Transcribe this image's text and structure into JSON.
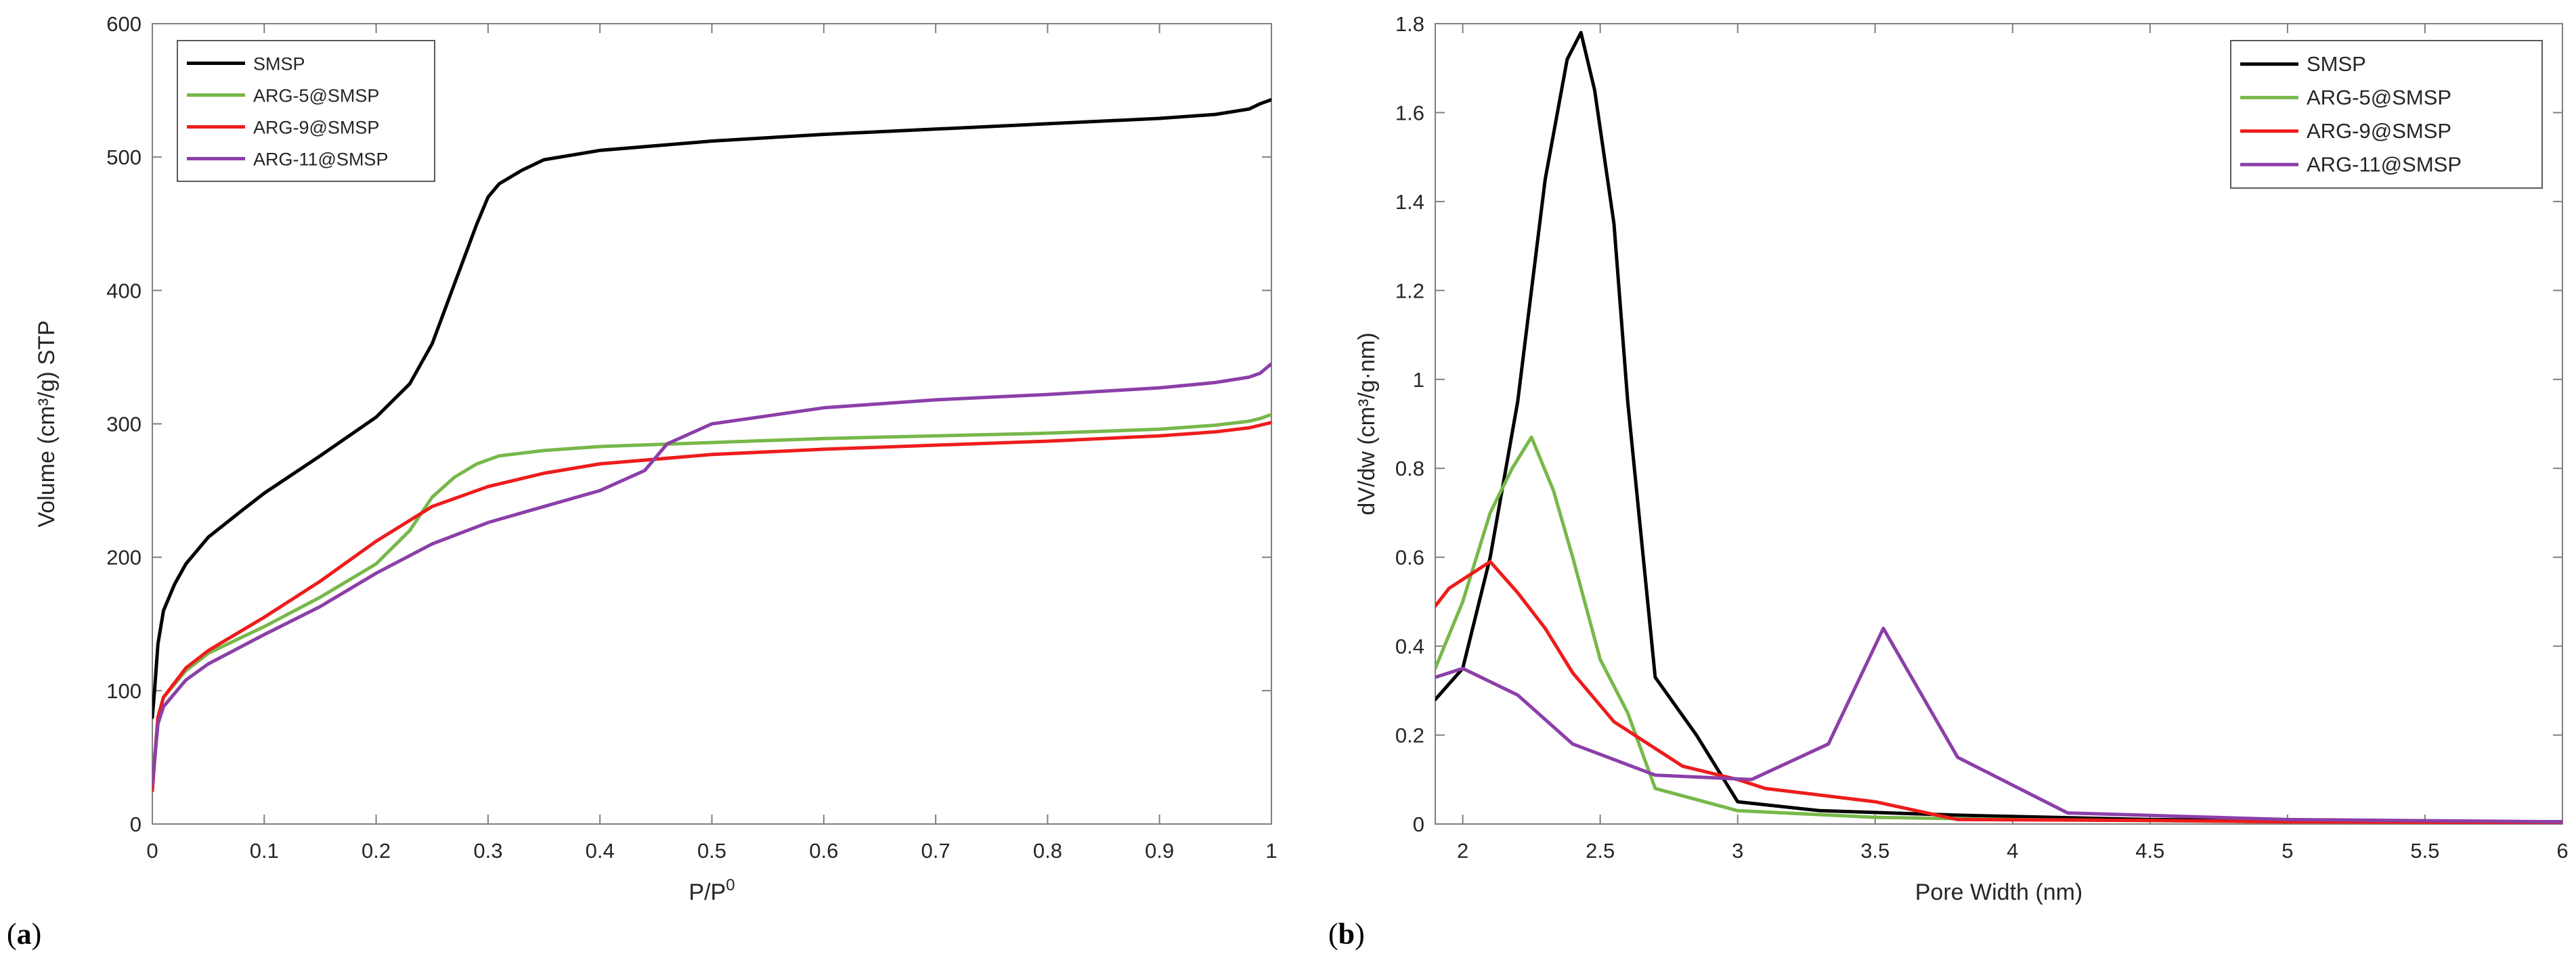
{
  "chart_data": [
    {
      "type": "line",
      "panel_label": "a",
      "title": "",
      "xlabel": "P/P",
      "xlabel_sup": "0",
      "ylabel": "Volume (cm³/g) STP",
      "xlim": [
        0,
        1
      ],
      "ylim": [
        0,
        600
      ],
      "xticks": [
        0,
        0.1,
        0.2,
        0.3,
        0.4,
        0.5,
        0.6,
        0.7,
        0.8,
        0.9,
        1
      ],
      "xtick_labels": [
        "0",
        "0.1",
        "0.2",
        "0.3",
        "0.4",
        "0.5",
        "0.6",
        "0.7",
        "0.8",
        "0.9",
        "1"
      ],
      "yticks": [
        0,
        100,
        200,
        300,
        400,
        500,
        600
      ],
      "ytick_labels": [
        "0",
        "100",
        "200",
        "300",
        "400",
        "500",
        "600"
      ],
      "grid": false,
      "legend_position": "top-left",
      "series": [
        {
          "name": "SMSP",
          "color": "#000000",
          "x": [
            0,
            0.002,
            0.005,
            0.01,
            0.02,
            0.03,
            0.05,
            0.08,
            0.1,
            0.15,
            0.2,
            0.23,
            0.25,
            0.27,
            0.29,
            0.3,
            0.31,
            0.33,
            0.35,
            0.4,
            0.5,
            0.6,
            0.7,
            0.8,
            0.9,
            0.95,
            0.98,
            0.99,
            1
          ],
          "y": [
            80,
            100,
            135,
            160,
            180,
            195,
            215,
            235,
            248,
            276,
            305,
            330,
            360,
            405,
            450,
            470,
            480,
            490,
            498,
            505,
            512,
            517,
            521,
            525,
            529,
            532,
            536,
            540,
            543
          ]
        },
        {
          "name": "ARG-5@SMSP",
          "color": "#77b84a",
          "x": [
            0,
            0.005,
            0.01,
            0.03,
            0.05,
            0.1,
            0.15,
            0.2,
            0.23,
            0.25,
            0.27,
            0.29,
            0.31,
            0.35,
            0.4,
            0.5,
            0.6,
            0.7,
            0.8,
            0.9,
            0.95,
            0.98,
            0.99,
            1
          ],
          "y": [
            30,
            80,
            95,
            115,
            128,
            148,
            170,
            195,
            220,
            245,
            260,
            270,
            276,
            280,
            283,
            286,
            289,
            291,
            293,
            296,
            299,
            302,
            304,
            307
          ]
        },
        {
          "name": "ARG-9@SMSP",
          "color": "#ee1c1c",
          "x": [
            0,
            0.005,
            0.01,
            0.03,
            0.05,
            0.1,
            0.15,
            0.2,
            0.25,
            0.3,
            0.35,
            0.4,
            0.5,
            0.6,
            0.7,
            0.8,
            0.9,
            0.95,
            0.98,
            0.99,
            1
          ],
          "y": [
            25,
            80,
            95,
            117,
            130,
            155,
            182,
            212,
            238,
            253,
            263,
            270,
            277,
            281,
            284,
            287,
            291,
            294,
            297,
            299,
            301
          ]
        },
        {
          "name": "ARG-11@SMSP",
          "color": "#8b3fa8",
          "x": [
            0,
            0.005,
            0.01,
            0.03,
            0.05,
            0.1,
            0.15,
            0.2,
            0.25,
            0.3,
            0.35,
            0.4,
            0.44,
            0.46,
            0.5,
            0.6,
            0.7,
            0.8,
            0.9,
            0.95,
            0.98,
            0.99,
            1
          ],
          "y": [
            30,
            75,
            88,
            108,
            120,
            142,
            163,
            188,
            210,
            226,
            238,
            250,
            265,
            285,
            300,
            312,
            318,
            322,
            327,
            331,
            335,
            338,
            345
          ]
        }
      ]
    },
    {
      "type": "line",
      "panel_label": "b",
      "title": "",
      "xlabel": "Pore Width (nm)",
      "ylabel": "dV/dw (cm³/g·nm)",
      "xlim": [
        1.9,
        6
      ],
      "ylim": [
        0,
        1.8
      ],
      "xticks": [
        2,
        2.5,
        3,
        3.5,
        4,
        4.5,
        5,
        5.5,
        6
      ],
      "xtick_labels": [
        "2",
        "2.5",
        "3",
        "3.5",
        "4",
        "4.5",
        "5",
        "5.5",
        "6"
      ],
      "yticks": [
        0,
        0.2,
        0.4,
        0.6,
        0.8,
        1,
        1.2,
        1.4,
        1.6,
        1.8
      ],
      "ytick_labels": [
        "0",
        "0.2",
        "0.4",
        "0.6",
        "0.8",
        "1",
        "1.2",
        "1.4",
        "1.6",
        "1.8"
      ],
      "grid": false,
      "legend_position": "top-right",
      "series": [
        {
          "name": "SMSP",
          "color": "#000000",
          "x": [
            1.9,
            2.0,
            2.1,
            2.2,
            2.3,
            2.38,
            2.43,
            2.48,
            2.55,
            2.6,
            2.7,
            2.85,
            3.0,
            3.3,
            3.8,
            4.5,
            5.0,
            6.0
          ],
          "y": [
            0.28,
            0.35,
            0.6,
            0.95,
            1.45,
            1.72,
            1.78,
            1.65,
            1.35,
            0.95,
            0.33,
            0.2,
            0.05,
            0.03,
            0.02,
            0.01,
            0.008,
            0.005
          ]
        },
        {
          "name": "ARG-5@SMSP",
          "color": "#77b84a",
          "x": [
            1.9,
            2.0,
            2.1,
            2.18,
            2.25,
            2.33,
            2.4,
            2.5,
            2.6,
            2.7,
            3.0,
            3.5,
            4.0,
            5.0,
            6.0
          ],
          "y": [
            0.35,
            0.5,
            0.7,
            0.8,
            0.87,
            0.75,
            0.6,
            0.37,
            0.25,
            0.08,
            0.03,
            0.015,
            0.01,
            0.005,
            0.003
          ]
        },
        {
          "name": "ARG-9@SMSP",
          "color": "#ee1c1c",
          "x": [
            1.9,
            1.95,
            2.0,
            2.1,
            2.2,
            2.3,
            2.4,
            2.55,
            2.65,
            2.8,
            3.0,
            3.1,
            3.5,
            3.8,
            4.5,
            5.0,
            6.0
          ],
          "y": [
            0.49,
            0.53,
            0.55,
            0.59,
            0.52,
            0.44,
            0.34,
            0.23,
            0.19,
            0.13,
            0.1,
            0.08,
            0.05,
            0.01,
            0.008,
            0.005,
            0.003
          ]
        },
        {
          "name": "ARG-11@SMSP",
          "color": "#8b3fa8",
          "x": [
            1.9,
            2.0,
            2.2,
            2.4,
            2.7,
            3.05,
            3.33,
            3.53,
            3.8,
            4.2,
            5.0,
            6.0
          ],
          "y": [
            0.33,
            0.35,
            0.29,
            0.18,
            0.11,
            0.1,
            0.18,
            0.44,
            0.15,
            0.025,
            0.01,
            0.005
          ]
        }
      ]
    }
  ]
}
